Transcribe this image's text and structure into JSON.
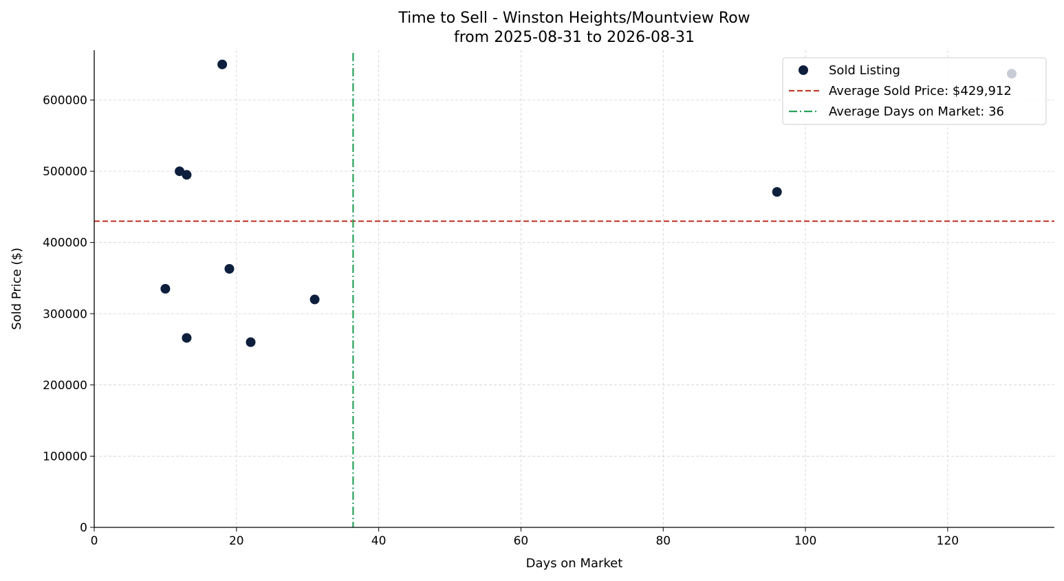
{
  "chart_data": {
    "type": "scatter",
    "title": "Time to Sell - Winston Heights/Mountview Row",
    "subtitle": "from 2025-08-31 to 2026-08-31",
    "xlabel": "Days on Market",
    "ylabel": "Sold Price ($)",
    "xlim": [
      0,
      135
    ],
    "ylim": [
      0,
      670000
    ],
    "x_ticks": [
      0,
      20,
      40,
      60,
      80,
      100,
      120
    ],
    "y_ticks": [
      0,
      100000,
      200000,
      300000,
      400000,
      500000,
      600000
    ],
    "grid": true,
    "legend_position": "top-right",
    "series": [
      {
        "name": "Sold Listing",
        "color": "#0d1f3c",
        "points": [
          {
            "x": 10,
            "y": 335000
          },
          {
            "x": 12,
            "y": 500000
          },
          {
            "x": 13,
            "y": 495000
          },
          {
            "x": 13,
            "y": 266000
          },
          {
            "x": 18,
            "y": 650000
          },
          {
            "x": 19,
            "y": 363000
          },
          {
            "x": 22,
            "y": 260000
          },
          {
            "x": 31,
            "y": 320000
          },
          {
            "x": 96,
            "y": 471000
          }
        ]
      }
    ],
    "faded_points": [
      {
        "x": 129,
        "y": 637000,
        "color": "#c8ccd4"
      }
    ],
    "reference_lines": [
      {
        "orientation": "horizontal",
        "value": 429912,
        "label": "Average Sold Price: $429,912",
        "color": "#c0392b",
        "style": "dashed"
      },
      {
        "orientation": "vertical",
        "value": 36.4,
        "label": "Average Days on Market: 36",
        "color": "#27a15a",
        "style": "dashdot"
      }
    ]
  }
}
